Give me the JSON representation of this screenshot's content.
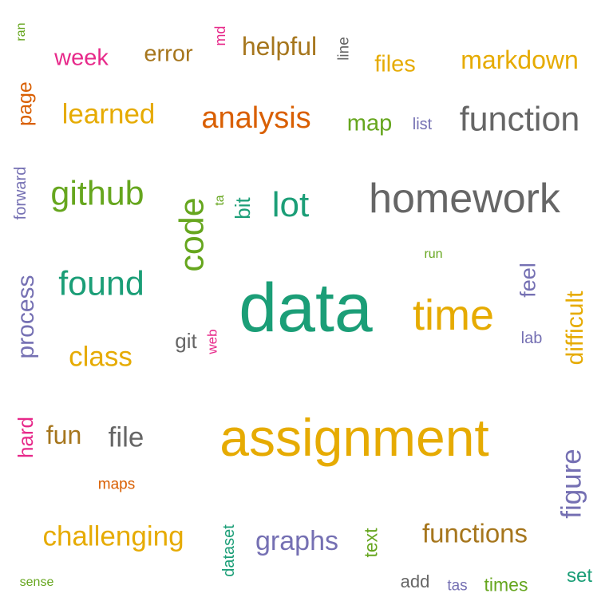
{
  "colors": {
    "teal": "#1b9e77",
    "orange": "#d95f02",
    "purple": "#7570b3",
    "magenta": "#e7298a",
    "green": "#66a61e",
    "gold": "#e6ab02",
    "brown": "#a6761d",
    "gray": "#666666"
  },
  "words": [
    {
      "text": "data",
      "color": "#1b9e77"
    },
    {
      "text": "assignment",
      "color": "#e6ab02"
    },
    {
      "text": "homework",
      "color": "#666666"
    },
    {
      "text": "time",
      "color": "#e6ab02"
    },
    {
      "text": "function",
      "color": "#666666"
    },
    {
      "text": "github",
      "color": "#66a61e"
    },
    {
      "text": "found",
      "color": "#1b9e77"
    },
    {
      "text": "code",
      "color": "#66a61e"
    },
    {
      "text": "analysis",
      "color": "#d95f02"
    },
    {
      "text": "lot",
      "color": "#1b9e77"
    },
    {
      "text": "learned",
      "color": "#e6ab02"
    },
    {
      "text": "challenging",
      "color": "#e6ab02"
    },
    {
      "text": "functions",
      "color": "#a6761d"
    },
    {
      "text": "graphs",
      "color": "#7570b3"
    },
    {
      "text": "class",
      "color": "#e6ab02"
    },
    {
      "text": "markdown",
      "color": "#e6ab02"
    },
    {
      "text": "helpful",
      "color": "#a6761d"
    },
    {
      "text": "figure",
      "color": "#7570b3"
    },
    {
      "text": "process",
      "color": "#7570b3"
    },
    {
      "text": "difficult",
      "color": "#e6ab02"
    },
    {
      "text": "file",
      "color": "#666666"
    },
    {
      "text": "fun",
      "color": "#a6761d"
    },
    {
      "text": "error",
      "color": "#a6761d"
    },
    {
      "text": "week",
      "color": "#e7298a"
    },
    {
      "text": "files",
      "color": "#e6ab02"
    },
    {
      "text": "map",
      "color": "#66a61e"
    },
    {
      "text": "feel",
      "color": "#7570b3"
    },
    {
      "text": "git",
      "color": "#666666"
    },
    {
      "text": "hard",
      "color": "#e7298a"
    },
    {
      "text": "page",
      "color": "#d95f02"
    },
    {
      "text": "bit",
      "color": "#1b9e77"
    },
    {
      "text": "set",
      "color": "#1b9e77"
    },
    {
      "text": "times",
      "color": "#66a61e"
    },
    {
      "text": "add",
      "color": "#666666"
    },
    {
      "text": "text",
      "color": "#66a61e"
    },
    {
      "text": "dataset",
      "color": "#1b9e77"
    },
    {
      "text": "forward",
      "color": "#7570b3"
    },
    {
      "text": "lab",
      "color": "#7570b3"
    },
    {
      "text": "list",
      "color": "#7570b3"
    },
    {
      "text": "line",
      "color": "#666666"
    },
    {
      "text": "maps",
      "color": "#d95f02"
    },
    {
      "text": "tas",
      "color": "#7570b3"
    },
    {
      "text": "md",
      "color": "#e7298a"
    },
    {
      "text": "web",
      "color": "#e7298a"
    },
    {
      "text": "ta",
      "color": "#66a61e"
    },
    {
      "text": "run",
      "color": "#66a61e"
    },
    {
      "text": "ran",
      "color": "#66a61e"
    },
    {
      "text": "sense",
      "color": "#66a61e"
    }
  ]
}
